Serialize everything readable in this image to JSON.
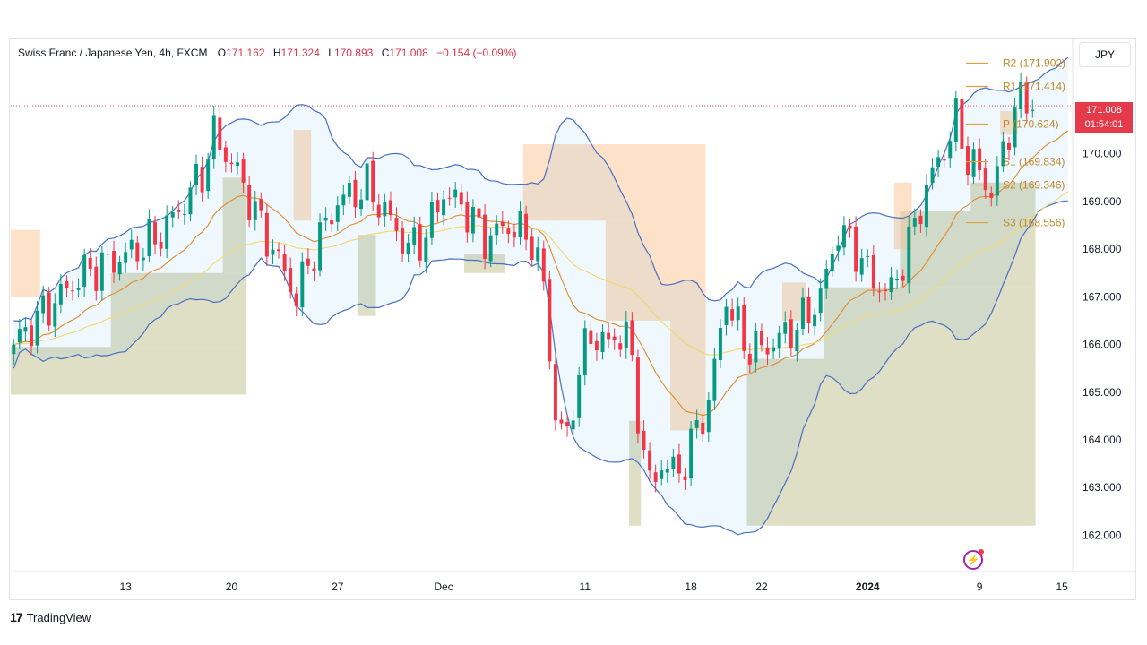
{
  "legend": {
    "title": "Swiss Franc / Japanese Yen, 4h, FXCM",
    "open_label": "O",
    "open": "171.162",
    "high_label": "H",
    "high": "171.324",
    "low_label": "L",
    "low": "170.893",
    "close_label": "C",
    "close": "171.008",
    "change": "−0.154 (−0.09%)"
  },
  "currency": "JPY",
  "price_tag": {
    "price": "171.008",
    "countdown": "01:54:01"
  },
  "branding": "TradingView",
  "colors": {
    "up": "#089981",
    "down": "#f23645",
    "band": "#4a6fc2",
    "ema_fast": "#e08a2c",
    "ema_slow": "#f5d76e",
    "pivot": "#e0a040"
  },
  "chart_data": {
    "type": "candlestick",
    "symbol": "CHFJPY",
    "timeframe": "4h",
    "ylim": [
      161.2,
      172.4
    ],
    "yticks": [
      162,
      163,
      164,
      165,
      166,
      167,
      168,
      169,
      170
    ],
    "ytick_labels": [
      "162.000",
      "163.000",
      "164.000",
      "165.000",
      "166.000",
      "167.000",
      "168.000",
      "169.000",
      "170.000"
    ],
    "last_price": 171.008,
    "xticks": [
      {
        "label": "13",
        "index": 19
      },
      {
        "label": "20",
        "index": 37
      },
      {
        "label": "27",
        "index": 55
      },
      {
        "label": "Dec",
        "index": 73
      },
      {
        "label": "11",
        "index": 97
      },
      {
        "label": "18",
        "index": 115
      },
      {
        "label": "22",
        "index": 127
      },
      {
        "label": "2024",
        "index": 145
      },
      {
        "label": "9",
        "index": 164
      },
      {
        "label": "15",
        "index": 178
      }
    ],
    "pivots": [
      {
        "label": "R2",
        "value": 171.902
      },
      {
        "label": "R1",
        "value": 171.414
      },
      {
        "label": "P",
        "value": 170.624
      },
      {
        "label": "S1",
        "value": 169.834
      },
      {
        "label": "S2",
        "value": 169.346
      },
      {
        "label": "S3",
        "value": 168.556
      }
    ],
    "zones": [
      {
        "i0": 0,
        "i1": 40,
        "y0": 164.95,
        "y1": 165.95,
        "kind": "demand"
      },
      {
        "i0": 17,
        "i1": 40,
        "y0": 165.95,
        "y1": 167.5,
        "kind": "demand"
      },
      {
        "i0": 36,
        "i1": 40,
        "y0": 167.5,
        "y1": 169.5,
        "kind": "demand"
      },
      {
        "i0": 59,
        "i1": 62,
        "y0": 166.6,
        "y1": 168.3,
        "kind": "demand"
      },
      {
        "i0": 77,
        "i1": 84,
        "y0": 167.5,
        "y1": 167.9,
        "kind": "demand"
      },
      {
        "i0": 105,
        "i1": 107,
        "y0": 162.2,
        "y1": 164.4,
        "kind": "demand"
      },
      {
        "i0": 125,
        "i1": 174,
        "y0": 162.2,
        "y1": 165.7,
        "kind": "demand"
      },
      {
        "i0": 138,
        "i1": 174,
        "y0": 165.7,
        "y1": 167.2,
        "kind": "demand"
      },
      {
        "i0": 151,
        "i1": 174,
        "y0": 167.2,
        "y1": 168.8,
        "kind": "demand"
      },
      {
        "i0": 163,
        "i1": 174,
        "y0": 168.8,
        "y1": 169.4,
        "kind": "demand"
      },
      {
        "i0": 0,
        "i1": 5,
        "y0": 167.0,
        "y1": 168.4,
        "kind": "supply"
      },
      {
        "i0": 48,
        "i1": 51,
        "y0": 168.6,
        "y1": 170.5,
        "kind": "supply"
      },
      {
        "i0": 87,
        "i1": 118,
        "y0": 168.6,
        "y1": 170.2,
        "kind": "supply"
      },
      {
        "i0": 101,
        "i1": 118,
        "y0": 166.5,
        "y1": 168.6,
        "kind": "supply"
      },
      {
        "i0": 112,
        "i1": 118,
        "y0": 164.2,
        "y1": 166.5,
        "kind": "supply"
      },
      {
        "i0": 131,
        "i1": 135,
        "y0": 166.5,
        "y1": 167.3,
        "kind": "supply"
      },
      {
        "i0": 150,
        "i1": 153,
        "y0": 168.0,
        "y1": 169.4,
        "kind": "supply"
      },
      {
        "i0": 168,
        "i1": 171,
        "y0": 170.4,
        "y1": 170.9,
        "kind": "supply"
      }
    ],
    "anchors": [
      [
        0,
        166.0
      ],
      [
        6,
        166.8
      ],
      [
        12,
        167.5
      ],
      [
        18,
        167.8
      ],
      [
        24,
        168.2
      ],
      [
        28,
        168.8
      ],
      [
        32,
        169.6
      ],
      [
        34,
        170.4
      ],
      [
        38,
        169.6
      ],
      [
        42,
        168.5
      ],
      [
        46,
        167.5
      ],
      [
        48,
        167.0
      ],
      [
        51,
        168.0
      ],
      [
        55,
        169.0
      ],
      [
        60,
        169.3
      ],
      [
        63,
        168.8
      ],
      [
        67,
        168.0
      ],
      [
        70,
        168.3
      ],
      [
        73,
        169.2
      ],
      [
        77,
        168.8
      ],
      [
        80,
        168.2
      ],
      [
        84,
        168.5
      ],
      [
        88,
        168.2
      ],
      [
        90,
        167.2
      ],
      [
        92,
        164.5
      ],
      [
        94,
        164.0
      ],
      [
        96,
        165.5
      ],
      [
        98,
        166.2
      ],
      [
        101,
        166.0
      ],
      [
        104,
        166.3
      ],
      [
        106,
        164.6
      ],
      [
        108,
        163.0
      ],
      [
        110,
        163.5
      ],
      [
        113,
        163.3
      ],
      [
        116,
        164.2
      ],
      [
        118,
        164.8
      ],
      [
        121,
        167.0
      ],
      [
        124,
        166.0
      ],
      [
        127,
        165.9
      ],
      [
        131,
        166.2
      ],
      [
        134,
        166.5
      ],
      [
        137,
        167.0
      ],
      [
        140,
        168.4
      ],
      [
        143,
        168.0
      ],
      [
        146,
        167.3
      ],
      [
        149,
        167.1
      ],
      [
        152,
        168.1
      ],
      [
        155,
        169.3
      ],
      [
        158,
        170.1
      ],
      [
        160,
        170.7
      ],
      [
        162,
        169.9
      ],
      [
        164,
        169.6
      ],
      [
        166,
        169.2
      ],
      [
        168,
        170.0
      ],
      [
        170,
        171.0
      ],
      [
        172,
        171.1
      ]
    ]
  }
}
